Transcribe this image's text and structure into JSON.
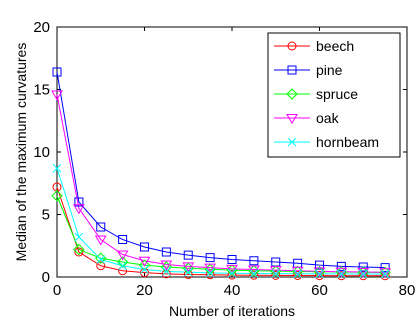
{
  "chart_data": {
    "type": "line",
    "title": "",
    "xlabel": "Number of iterations",
    "ylabel": "Median of the maximum curvatures",
    "xlim": [
      0,
      80
    ],
    "ylim": [
      0,
      20
    ],
    "xticks": [
      "0",
      "20",
      "40",
      "60",
      "80"
    ],
    "yticks": [
      "0",
      "5",
      "10",
      "15",
      "20"
    ],
    "grid": false,
    "legend_position": "top-right",
    "x": [
      0,
      5,
      10,
      15,
      20,
      25,
      30,
      35,
      40,
      45,
      50,
      55,
      60,
      65,
      70,
      75
    ],
    "series": [
      {
        "name": "beech",
        "color": "#ff0000",
        "marker": "circle",
        "values": [
          7.2,
          2.0,
          0.9,
          0.5,
          0.35,
          0.25,
          0.2,
          0.18,
          0.15,
          0.14,
          0.13,
          0.12,
          0.11,
          0.1,
          0.1,
          0.1
        ]
      },
      {
        "name": "pine",
        "color": "#0000ff",
        "marker": "square",
        "values": [
          16.4,
          6.0,
          4.0,
          3.0,
          2.4,
          2.0,
          1.75,
          1.55,
          1.4,
          1.3,
          1.2,
          1.1,
          0.95,
          0.85,
          0.8,
          0.75
        ]
      },
      {
        "name": "spruce",
        "color": "#00ff00",
        "marker": "diamond",
        "values": [
          6.5,
          2.2,
          1.5,
          1.2,
          0.95,
          0.8,
          0.7,
          0.62,
          0.55,
          0.5,
          0.47,
          0.44,
          0.42,
          0.4,
          0.38,
          0.37
        ]
      },
      {
        "name": "oak",
        "color": "#ff00ff",
        "marker": "triangle-down",
        "values": [
          14.6,
          5.5,
          3.0,
          1.8,
          1.3,
          1.0,
          0.85,
          0.75,
          0.65,
          0.6,
          0.55,
          0.5,
          0.45,
          0.42,
          0.4,
          0.38
        ]
      },
      {
        "name": "hornbeam",
        "color": "#00ffff",
        "marker": "x",
        "values": [
          8.7,
          3.2,
          1.4,
          0.9,
          0.6,
          0.45,
          0.38,
          0.33,
          0.3,
          0.28,
          0.27,
          0.26,
          0.25,
          0.25,
          0.24,
          0.24
        ]
      }
    ]
  }
}
